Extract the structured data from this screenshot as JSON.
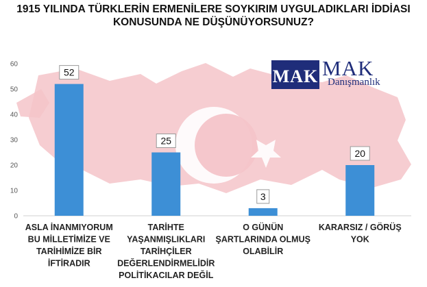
{
  "chart_data": {
    "type": "bar",
    "title_lines": [
      "1915 YILINDA TÜRKLERİN ERMENİLERE SOYKIRIM UYGULADIKLARI İDDİASI",
      "KONUSUNDA NE DÜŞÜNÜYORSUNUZ?"
    ],
    "categories": [
      [
        "ASLA İNANMIYORUM",
        "BU MİLLETİMİZE VE",
        "TARİHİMİZE BİR",
        "İFTİRADIR"
      ],
      [
        "TARİHTE",
        "YAŞANMIŞLIKLARI",
        "TARİHÇİLER",
        "DEĞERLENDİRMELİDİR",
        "POLİTİKACILAR DEĞİL"
      ],
      [
        "O GÜNÜN",
        "ŞARTLARINDA OLMUŞ",
        "OLABİLİR"
      ],
      [
        "KARARSIZ / GÖRÜŞ",
        "YOK"
      ]
    ],
    "values": [
      52,
      25,
      3,
      20
    ],
    "data_labels": [
      "52",
      "25",
      "3",
      "20"
    ],
    "ylim": [
      0,
      60
    ],
    "yticks": [
      0,
      10,
      20,
      30,
      40,
      50,
      60
    ],
    "ytick_labels": [
      "0",
      "10",
      "20",
      "30",
      "40",
      "50",
      "60"
    ],
    "grid": false,
    "bar_color": "#3d8fd6"
  },
  "logo": {
    "mark": "MAK",
    "word": "MAK",
    "subtitle": "Danışmanlık",
    "color": "#1f2d7a"
  },
  "background": {
    "description_color": "#f2b5bc",
    "icon": "turkey-flag-map-watermark"
  }
}
